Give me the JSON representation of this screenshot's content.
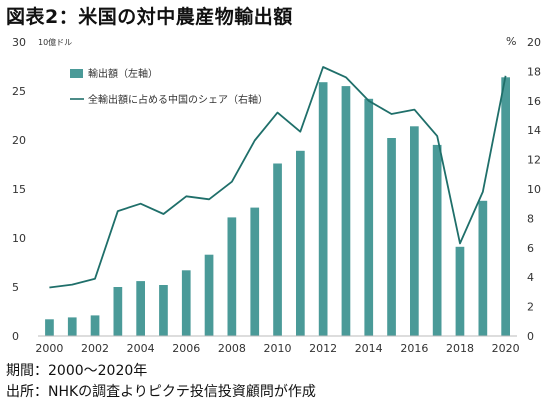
{
  "title": "図表2：米国の対中農産物輸出額",
  "footnotes": {
    "period": "期間：2000～2020年",
    "source": "出所：NHKの調査よりピクテ投信投資顧問が作成"
  },
  "chart_data": {
    "type": "bar+line",
    "left_unit": "10億ドル",
    "right_unit": "%",
    "x_ticks": [
      "2000",
      "2002",
      "2004",
      "2006",
      "2008",
      "2010",
      "2012",
      "2014",
      "2016",
      "2018",
      "2020"
    ],
    "y_left_ticks": [
      "0",
      "5",
      "10",
      "15",
      "20",
      "25",
      "30"
    ],
    "y_right_ticks": [
      "0",
      "2",
      "4",
      "6",
      "8",
      "10",
      "12",
      "14",
      "16",
      "18",
      "20"
    ],
    "ylim_left": [
      0,
      30
    ],
    "ylim_right": [
      0,
      20
    ],
    "colors": {
      "bar": "#4a9a98",
      "line": "#1f6f6a"
    },
    "legend_position": "top-left",
    "categories": [
      2000,
      2001,
      2002,
      2003,
      2004,
      2005,
      2006,
      2007,
      2008,
      2009,
      2010,
      2011,
      2012,
      2013,
      2014,
      2015,
      2016,
      2017,
      2018,
      2019,
      2020
    ],
    "series": [
      {
        "name": "輸出額（左軸）",
        "type": "bar",
        "axis": "left",
        "values": [
          1.7,
          1.9,
          2.1,
          5.0,
          5.6,
          5.2,
          6.7,
          8.3,
          12.1,
          13.1,
          17.6,
          18.9,
          25.9,
          25.5,
          24.2,
          20.2,
          21.4,
          19.5,
          9.1,
          13.8,
          26.4
        ]
      },
      {
        "name": "全輸出額に占める中国のシェア（右軸）",
        "type": "line",
        "axis": "right",
        "values": [
          3.3,
          3.5,
          3.9,
          8.5,
          9.0,
          8.3,
          9.5,
          9.3,
          10.5,
          13.3,
          15.2,
          13.9,
          18.3,
          17.6,
          16.0,
          15.1,
          15.4,
          13.6,
          6.3,
          9.8,
          17.7
        ]
      }
    ]
  }
}
